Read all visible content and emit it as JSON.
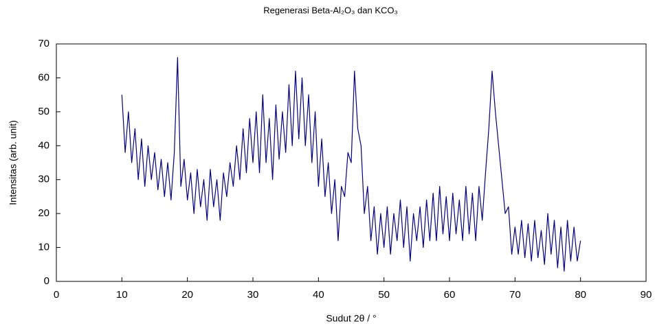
{
  "chart_data": {
    "type": "line",
    "title": "Regenerasi Beta-Al₂O₃ dan KCO₃",
    "x_label": "Sudut 2θ / °",
    "y_label": "Intensitas (arb. unit)",
    "xlim": [
      0,
      90
    ],
    "xticks": [
      0,
      10,
      20,
      30,
      40,
      50,
      60,
      70,
      80,
      90
    ],
    "ylim": [
      0,
      70
    ],
    "yticks": [
      0,
      10,
      20,
      30,
      40,
      50,
      60,
      70
    ],
    "x": [
      10,
      10.5,
      11,
      11.5,
      12,
      12.5,
      13,
      13.5,
      14,
      14.5,
      15,
      15.5,
      16,
      16.5,
      17,
      17.5,
      18,
      18.5,
      19,
      19.5,
      20,
      20.5,
      21,
      21.5,
      22,
      22.5,
      23,
      23.5,
      24,
      24.5,
      25,
      25.5,
      26,
      26.5,
      27,
      27.5,
      28,
      28.5,
      29,
      29.5,
      30,
      30.5,
      31,
      31.5,
      32,
      32.5,
      33,
      33.5,
      34,
      34.5,
      35,
      35.5,
      36,
      36.5,
      37,
      37.5,
      38,
      38.5,
      39,
      39.5,
      40,
      40.5,
      41,
      41.5,
      42,
      42.5,
      43,
      43.5,
      44,
      44.5,
      45,
      45.5,
      46,
      46.5,
      47,
      47.5,
      48,
      48.5,
      49,
      49.5,
      50,
      50.5,
      51,
      51.5,
      52,
      52.5,
      53,
      53.5,
      54,
      54.5,
      55,
      55.5,
      56,
      56.5,
      57,
      57.5,
      58,
      58.5,
      59,
      59.5,
      60,
      60.5,
      61,
      61.5,
      62,
      62.5,
      63,
      63.5,
      64,
      64.5,
      65,
      65.5,
      66,
      66.5,
      67,
      67.5,
      68,
      68.5,
      69,
      69.5,
      70,
      70.5,
      71,
      71.5,
      72,
      72.5,
      73,
      73.5,
      74,
      74.5,
      75,
      75.5,
      76,
      76.5,
      77,
      77.5,
      78,
      78.5,
      79,
      79.5,
      80
    ],
    "series": [
      {
        "color": "#000080",
        "values": [
          55,
          38,
          50,
          35,
          45,
          30,
          42,
          28,
          40,
          30,
          38,
          27,
          36,
          25,
          35,
          24,
          38,
          66,
          28,
          36,
          24,
          32,
          20,
          33,
          22,
          30,
          18,
          33,
          22,
          30,
          18,
          32,
          25,
          35,
          28,
          40,
          30,
          45,
          32,
          48,
          35,
          50,
          32,
          55,
          35,
          48,
          30,
          52,
          36,
          50,
          38,
          58,
          40,
          62,
          42,
          60,
          40,
          55,
          35,
          50,
          28,
          42,
          25,
          35,
          20,
          30,
          12,
          28,
          25,
          38,
          35,
          62,
          45,
          40,
          20,
          28,
          12,
          22,
          8,
          20,
          10,
          22,
          8,
          20,
          12,
          24,
          10,
          22,
          6,
          20,
          12,
          22,
          10,
          24,
          12,
          26,
          12,
          28,
          14,
          25,
          12,
          26,
          14,
          24,
          12,
          28,
          14,
          26,
          12,
          28,
          18,
          32,
          45,
          62,
          50,
          40,
          30,
          20,
          22,
          8,
          16,
          8,
          18,
          7,
          17,
          6,
          18,
          7,
          15,
          5,
          20,
          8,
          18,
          4,
          16,
          3,
          18,
          6,
          16,
          6,
          12
        ]
      }
    ]
  }
}
